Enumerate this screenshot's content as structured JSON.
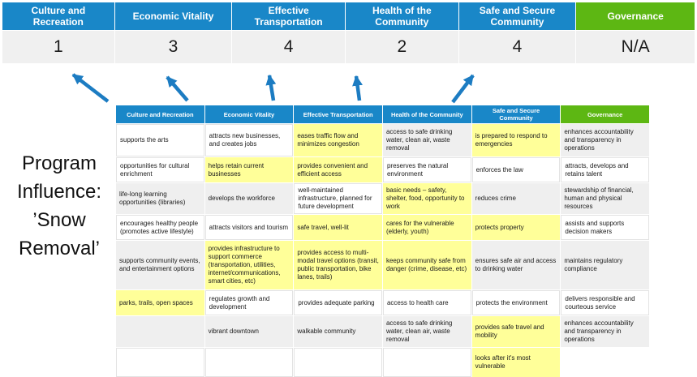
{
  "summary_table": {
    "columns": [
      {
        "label": "Culture and Recreation",
        "value": "1"
      },
      {
        "label": "Economic Vitality",
        "value": "3"
      },
      {
        "label": "Effective Transportation",
        "value": "4"
      },
      {
        "label": "Health of the Community",
        "value": "2"
      },
      {
        "label": "Safe and Secure Community",
        "value": "4"
      },
      {
        "label": "Governance",
        "value": "N/A"
      }
    ]
  },
  "title": {
    "lines": [
      "Program",
      "Influence:",
      "’Snow",
      "Removal’"
    ]
  },
  "matrix": {
    "headers": [
      "Culture and Recreation",
      "Economic Vitality",
      "Effective Transportation",
      "Health of the Community",
      "Safe and Secure\nCommunity",
      "Governance"
    ],
    "rows": [
      [
        {
          "text": "supports the arts",
          "bg": "w"
        },
        {
          "text": "attracts new businesses, and creates jobs",
          "bg": "w"
        },
        {
          "text": "eases traffic flow and minimizes congestion",
          "bg": "y"
        },
        {
          "text": "access to safe drinking water, clean air, waste removal",
          "bg": "g"
        },
        {
          "text": "is prepared to respond to emergencies",
          "bg": "y"
        },
        {
          "text": "enhances accountability and transparency in operations",
          "bg": "g"
        }
      ],
      [
        {
          "text": "opportunities for cultural enrichment",
          "bg": "w"
        },
        {
          "text": "helps retain current businesses",
          "bg": "y"
        },
        {
          "text": "provides convenient and efficient access",
          "bg": "y"
        },
        {
          "text": "preserves the natural environment",
          "bg": "w"
        },
        {
          "text": "enforces the law",
          "bg": "w"
        },
        {
          "text": "attracts, develops and retains talent",
          "bg": "w"
        }
      ],
      [
        {
          "text": "life-long learning opportunities (libraries)",
          "bg": "g"
        },
        {
          "text": "develops the workforce",
          "bg": "g"
        },
        {
          "text": "well-maintained infrastructure, planned for future development",
          "bg": "w"
        },
        {
          "text": "basic needs – safety, shelter, food, opportunity to work",
          "bg": "y"
        },
        {
          "text": "reduces crime",
          "bg": "g"
        },
        {
          "text": "stewardship of financial, human and physical resources",
          "bg": "g"
        }
      ],
      [
        {
          "text": "encourages healthy people (promotes active lifestyle)",
          "bg": "w"
        },
        {
          "text": "attracts visitors and tourism",
          "bg": "w"
        },
        {
          "text": "safe travel, well-lit",
          "bg": "y"
        },
        {
          "text": "cares for the vulnerable (elderly, youth)",
          "bg": "y"
        },
        {
          "text": "protects property",
          "bg": "y"
        },
        {
          "text": "assists and supports decision makers",
          "bg": "w"
        }
      ],
      [
        {
          "text": "supports community events, and entertainment options",
          "bg": "g"
        },
        {
          "text": "provides infrastructure to support commerce (transportation, utilities, internet/communications, smart cities, etc)",
          "bg": "y"
        },
        {
          "text": "provides access to multi-modal travel options (transit, public transportation, bike lanes, trails)",
          "bg": "y"
        },
        {
          "text": "keeps community safe from danger (crime, disease, etc)",
          "bg": "y"
        },
        {
          "text": "ensures safe air and access to drinking water",
          "bg": "g"
        },
        {
          "text": "maintains regulatory compliance",
          "bg": "g"
        }
      ],
      [
        {
          "text": "parks, trails, open spaces",
          "bg": "y"
        },
        {
          "text": "regulates growth and development",
          "bg": "w"
        },
        {
          "text": "provides adequate parking",
          "bg": "w"
        },
        {
          "text": "access to health care",
          "bg": "w"
        },
        {
          "text": "protects the environment",
          "bg": "w"
        },
        {
          "text": "delivers responsible and courteous service",
          "bg": "w"
        }
      ],
      [
        {
          "text": "",
          "bg": "g"
        },
        {
          "text": "vibrant downtown",
          "bg": "g"
        },
        {
          "text": "walkable community",
          "bg": "g"
        },
        {
          "text": "access to safe drinking water, clean air, waste removal",
          "bg": "g"
        },
        {
          "text": "provides safe travel and mobility",
          "bg": "y"
        },
        {
          "text": "enhances accountability and transparency in operations",
          "bg": "g"
        }
      ],
      [
        {
          "text": "",
          "bg": "w"
        },
        {
          "text": "",
          "bg": "w"
        },
        {
          "text": "",
          "bg": "w"
        },
        {
          "text": "",
          "bg": "w"
        },
        {
          "text": "looks after it's most vulnerable",
          "bg": "y"
        },
        {
          "text": "",
          "bg": "n"
        }
      ]
    ]
  },
  "colors": {
    "header_blue": "#1987C8",
    "header_green": "#5DB713",
    "highlight_yellow": "#FFFF99",
    "band_gray": "#EFEFEF",
    "score_row_gray": "#F0F0F0",
    "arrow_blue": "#1C7CC2"
  }
}
